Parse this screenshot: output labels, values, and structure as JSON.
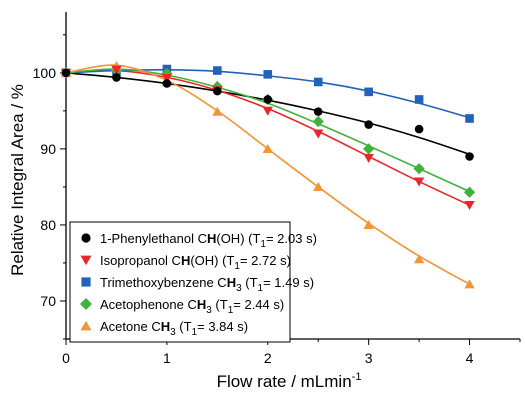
{
  "chart_data": {
    "type": "scatter",
    "xlabel": "Flow rate / mLmin",
    "xlabel_sup": "-1",
    "ylabel": "Relative Integral Area / %",
    "xlim": [
      0,
      4.5
    ],
    "ylim": [
      65,
      108
    ],
    "xticks": [
      0,
      1,
      2,
      3,
      4
    ],
    "yticks": [
      70,
      80,
      90,
      100
    ],
    "grid": false,
    "legend_position": "bottom-left",
    "series": [
      {
        "name": "1-Phenylethanol CH(OH)",
        "label_main": "1-Phenylethanol C",
        "label_bold": "H",
        "label_rest": "(OH)  (T",
        "t1_value": "= 2.03 s)",
        "color": "#000000",
        "marker": "circle",
        "x": [
          0,
          0.5,
          1,
          1.5,
          2,
          2.5,
          3,
          3.5,
          4
        ],
        "y": [
          100.0,
          99.4,
          98.6,
          97.6,
          96.5,
          94.9,
          93.2,
          92.6,
          89.0
        ],
        "fit": [
          100.0,
          99.4,
          98.6,
          97.6,
          96.4,
          95.0,
          93.4,
          91.5,
          89.3
        ]
      },
      {
        "name": "Isopropanol CH(OH)",
        "label_main": "Isopropanol C",
        "label_bold": "H",
        "label_rest": "(OH)  (T",
        "t1_value": "= 2.72 s)",
        "color": "#e8262b",
        "marker": "triangle-down",
        "x": [
          0,
          0.5,
          1,
          1.5,
          2,
          2.5,
          3,
          3.5,
          4
        ],
        "y": [
          100.0,
          100.4,
          99.3,
          97.7,
          95.0,
          92.0,
          88.8,
          85.7,
          82.6
        ],
        "fit": [
          100.0,
          100.3,
          99.4,
          97.7,
          95.3,
          92.3,
          89.0,
          85.7,
          82.6
        ]
      },
      {
        "name": "Trimethoxybenzene CH3",
        "label_main": "Trimethoxybenzene C",
        "label_bold": "H",
        "label_rest": "  (T",
        "t1_value": "= 1.49 s)",
        "sub3": true,
        "color": "#2262b8",
        "marker": "square",
        "x": [
          0,
          0.5,
          1,
          1.5,
          2,
          2.5,
          3,
          3.5,
          4
        ],
        "y": [
          100.0,
          100.2,
          100.5,
          100.3,
          99.8,
          98.8,
          97.5,
          96.5,
          94.0
        ],
        "fit": [
          100.0,
          100.3,
          100.4,
          100.2,
          99.6,
          98.8,
          97.6,
          96.0,
          94.1
        ]
      },
      {
        "name": "Acetophenone CH3",
        "label_main": "Acetophenone C",
        "label_bold": "H",
        "label_rest": "  (T",
        "t1_value": "= 2.44 s)",
        "sub3": true,
        "color": "#3fb23a",
        "marker": "diamond",
        "x": [
          0,
          0.5,
          1,
          1.5,
          2,
          2.5,
          3,
          3.5,
          4
        ],
        "y": [
          100.0,
          100.3,
          99.9,
          98.2,
          96.5,
          93.6,
          90.0,
          87.4,
          84.3
        ],
        "fit": [
          100.0,
          100.5,
          99.7,
          98.1,
          96.0,
          93.3,
          90.4,
          87.4,
          84.4
        ]
      },
      {
        "name": "Acetone CH3",
        "label_main": "Acetone C",
        "label_bold": "H",
        "label_rest": "  (T",
        "t1_value": "= 3.84 s)",
        "sub3": true,
        "color": "#f39436",
        "marker": "triangle-up",
        "x": [
          0,
          0.5,
          1,
          1.5,
          2,
          2.5,
          3,
          3.5,
          4
        ],
        "y": [
          100.0,
          100.9,
          98.8,
          94.9,
          90.0,
          85.0,
          80.0,
          75.5,
          72.2
        ],
        "fit": [
          100.0,
          101.0,
          99.0,
          95.0,
          90.0,
          85.0,
          80.2,
          75.9,
          72.2
        ]
      }
    ]
  }
}
